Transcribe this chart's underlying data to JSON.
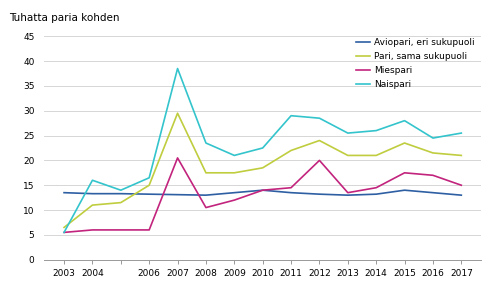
{
  "title": "Tuhatta paria kohden",
  "years": [
    2003,
    2004,
    2005,
    2006,
    2007,
    2008,
    2009,
    2010,
    2011,
    2012,
    2013,
    2014,
    2015,
    2016,
    2017
  ],
  "xtick_labels": [
    "2003",
    "2004",
    "",
    "2006",
    "2007",
    "2008",
    "2009",
    "2010",
    "2011",
    "2012",
    "2013",
    "2014",
    "2015",
    "2016",
    "2017"
  ],
  "aviopari": [
    13.5,
    13.3,
    13.3,
    13.2,
    13.1,
    13.0,
    13.5,
    14.0,
    13.5,
    13.2,
    13.0,
    13.2,
    14.0,
    13.5,
    13.0
  ],
  "pari_sama": [
    6.5,
    11.0,
    11.5,
    15.0,
    29.5,
    17.5,
    17.5,
    18.5,
    22.0,
    24.0,
    21.0,
    21.0,
    23.5,
    21.5,
    21.0
  ],
  "miespari": [
    5.5,
    6.0,
    6.0,
    6.0,
    20.5,
    10.5,
    12.0,
    14.0,
    14.5,
    20.0,
    13.5,
    14.5,
    17.5,
    17.0,
    15.0
  ],
  "naispari": [
    5.5,
    16.0,
    14.0,
    16.5,
    38.5,
    23.5,
    21.0,
    22.5,
    29.0,
    28.5,
    25.5,
    26.0,
    28.0,
    24.5,
    25.5
  ],
  "colors": {
    "aviopari": "#2e5fa3",
    "pari_sama": "#bfcd3e",
    "miespari": "#c2247d",
    "naispari": "#33c4cc"
  },
  "legend_labels": {
    "aviopari": "Aviopari, eri sukupuoli",
    "pari_sama": "Pari, sama sukupuoli",
    "miespari": "Miespari",
    "naispari": "Naispari"
  },
  "ylim": [
    0,
    45
  ],
  "yticks": [
    0,
    5,
    10,
    15,
    20,
    25,
    30,
    35,
    40,
    45
  ],
  "background_color": "#ffffff",
  "grid_color": "#d0d0d0"
}
